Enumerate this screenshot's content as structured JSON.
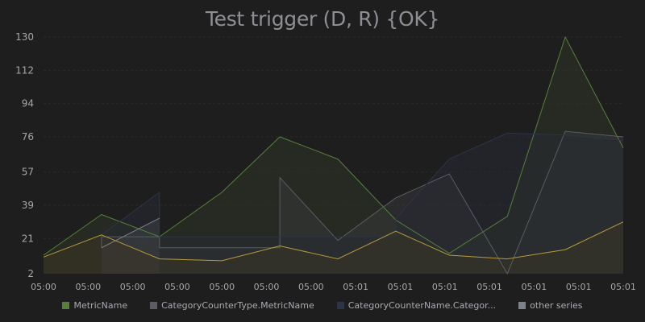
{
  "chart_data": {
    "type": "area",
    "title": "Test trigger (D, R) {OK}",
    "x_ticks": [
      "05:00",
      "05:00",
      "05:00",
      "05:00",
      "05:00",
      "05:00",
      "05:00",
      "05:01",
      "05:01",
      "05:01",
      "05:01",
      "05:01",
      "05:01",
      "05:01"
    ],
    "y_ticks": [
      2,
      21,
      39,
      57,
      76,
      94,
      112,
      130
    ],
    "ylim": [
      2,
      130
    ],
    "xlim": [
      0,
      13
    ],
    "grid": true,
    "legend_position": "bottom",
    "series": [
      {
        "name": "MetricName",
        "color": "#56803a",
        "fill": "#2b3424",
        "points": [
          [
            0,
            12
          ],
          [
            1.3,
            34
          ],
          [
            2.6,
            22
          ],
          [
            4.0,
            46
          ],
          [
            5.3,
            76
          ],
          [
            6.6,
            64
          ],
          [
            7.9,
            31
          ],
          [
            9.1,
            13
          ],
          [
            10.4,
            33
          ],
          [
            11.7,
            130
          ],
          [
            13,
            70
          ]
        ]
      },
      {
        "name": "CategoryCounterType.MetricName",
        "color": "#5a5d63",
        "fill": "#343638",
        "points": [
          [
            1.3,
            16
          ],
          [
            1.3,
            22
          ],
          [
            2.6,
            22
          ],
          [
            2.6,
            16
          ],
          [
            5.3,
            16
          ],
          [
            5.3,
            54
          ],
          [
            6.6,
            20
          ],
          [
            7.9,
            43
          ],
          [
            9.1,
            56
          ],
          [
            10.4,
            2
          ],
          [
            11.7,
            79
          ],
          [
            13,
            76
          ]
        ]
      },
      {
        "name": "CategoryCounterName.Categor...",
        "color": "#2c3447",
        "fill": "#262a33",
        "points": [
          [
            1.3,
            23
          ],
          [
            2.6,
            46
          ],
          [
            2.6,
            22
          ],
          [
            7.9,
            22
          ],
          [
            7.9,
            32
          ],
          [
            9.1,
            64
          ],
          [
            10.4,
            78
          ],
          [
            11.7,
            77
          ],
          [
            13,
            74
          ]
        ]
      },
      {
        "name": "other series",
        "color": "#7c8288",
        "fill": "#3d4044",
        "points": [
          [
            1.3,
            16
          ],
          [
            2.6,
            32
          ]
        ]
      },
      {
        "name": "",
        "color": "#b89a3c",
        "fill": "#3a3525",
        "points": [
          [
            0,
            11
          ],
          [
            1.3,
            23
          ],
          [
            2.6,
            10
          ],
          [
            4.0,
            9
          ],
          [
            5.3,
            17
          ],
          [
            6.6,
            10
          ],
          [
            7.9,
            25
          ],
          [
            9.1,
            12
          ],
          [
            10.4,
            10
          ],
          [
            11.7,
            15
          ],
          [
            13,
            30
          ]
        ]
      }
    ]
  }
}
